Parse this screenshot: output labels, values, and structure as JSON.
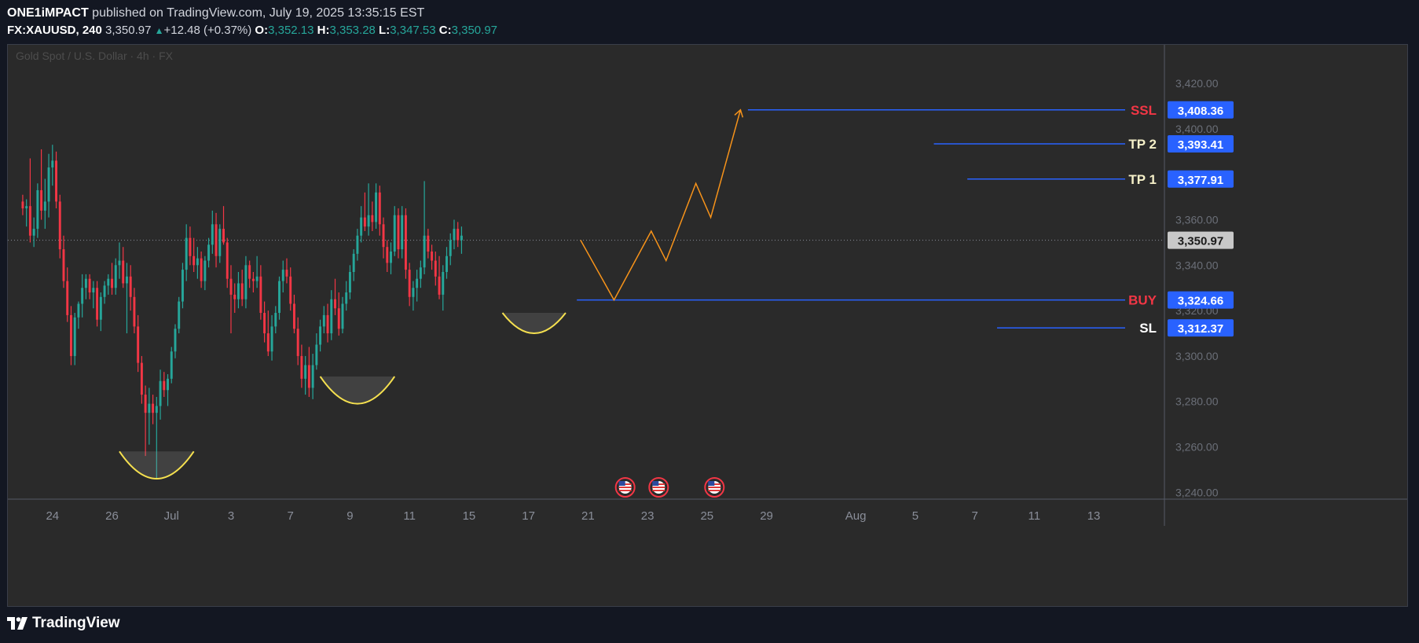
{
  "header": {
    "author": "ONE1iMPACT",
    "published_text": "published on TradingView.com, July 19, 2025 13:35:15 EST",
    "symbol": "FX:XAUUSD, 240",
    "last": "3,350.97",
    "change": "+12.48 (+0.37%)",
    "open_label": "O:",
    "open": "3,352.13",
    "high_label": "H:",
    "high": "3,353.28",
    "low_label": "L:",
    "low": "3,347.53",
    "close_label": "C:",
    "close": "3,350.97"
  },
  "footer": {
    "brand": "TradingView"
  },
  "colors": {
    "background": "#2a2a2a",
    "up": "#26a69a",
    "down": "#f23645",
    "level_line": "#2962ff",
    "price_badge": "#2962ff",
    "current_badge": "#c8c8c8",
    "projection": "#f7931a",
    "pattern": "#f5e04f",
    "buy_label": "#f23645",
    "ssl_label": "#f23645",
    "tp_label": "#f5f0c8",
    "sl_label": "#ffffff"
  },
  "chart_data": {
    "type": "candlestick",
    "title": "Gold Spot / U.S. Dollar · 4h · FX",
    "y_ticks": [
      "3,420.00",
      "3,400.00",
      "3,380.00",
      "3,360.00",
      "3,340.00",
      "3,320.00",
      "3,300.00",
      "3,280.00",
      "3,260.00",
      "3,240.00"
    ],
    "y_tick_values": [
      3420,
      3400,
      3380,
      3360,
      3340,
      3320,
      3300,
      3280,
      3260,
      3240
    ],
    "ylim": [
      3237,
      3437
    ],
    "x_ticks": [
      "24",
      "26",
      "Jul",
      "3",
      "7",
      "9",
      "11",
      "15",
      "17",
      "21",
      "23",
      "25",
      "29",
      "Aug",
      "5",
      "7",
      "11",
      "13"
    ],
    "x_tick_index": [
      8,
      24,
      40,
      56,
      72,
      88,
      104,
      120,
      136,
      152,
      168,
      184,
      200,
      224,
      240,
      256,
      272,
      288
    ],
    "xlim": [
      -4,
      307
    ],
    "current_price": {
      "label": "3,350.97",
      "value": 3350.97
    },
    "levels": [
      {
        "name": "SSL",
        "value": 3408.36,
        "badge": "3,408.36",
        "start_index": 195
      },
      {
        "name": "TP 2",
        "value": 3393.41,
        "badge": "3,393.41",
        "start_index": 245
      },
      {
        "name": "TP 1",
        "value": 3377.91,
        "badge": "3,377.91",
        "start_index": 254
      },
      {
        "name": "BUY",
        "value": 3324.66,
        "badge": "3,324.66",
        "start_index": 149
      },
      {
        "name": "SL",
        "value": 3312.37,
        "badge": "3,312.37",
        "start_index": 262
      }
    ],
    "projection_path": [
      {
        "index": 150,
        "value": 3351
      },
      {
        "index": 159,
        "value": 3324.66
      },
      {
        "index": 169,
        "value": 3355
      },
      {
        "index": 173,
        "value": 3342
      },
      {
        "index": 181,
        "value": 3376
      },
      {
        "index": 185,
        "value": 3361
      },
      {
        "index": 193,
        "value": 3408.36
      }
    ],
    "events": [
      {
        "index": 162,
        "icon": "us-flag-icon"
      },
      {
        "index": 171,
        "icon": "us-flag-icon"
      },
      {
        "index": 186,
        "icon": "us-flag-icon"
      }
    ],
    "patterns": [
      {
        "start": 26,
        "end": 46,
        "bottom": 3246,
        "rim": 3258
      },
      {
        "start": 80,
        "end": 100,
        "bottom": 3279,
        "rim": 3291
      },
      {
        "start": 129,
        "end": 146,
        "bottom": 3310,
        "rim": 3319
      }
    ],
    "candles": [
      {
        "o": 3368,
        "h": 3371,
        "l": 3362,
        "c": 3365
      },
      {
        "o": 3365,
        "h": 3369,
        "l": 3357,
        "c": 3366
      },
      {
        "o": 3366,
        "h": 3387,
        "l": 3350,
        "c": 3353
      },
      {
        "o": 3353,
        "h": 3361,
        "l": 3348,
        "c": 3356
      },
      {
        "o": 3356,
        "h": 3376,
        "l": 3352,
        "c": 3373
      },
      {
        "o": 3373,
        "h": 3391,
        "l": 3360,
        "c": 3364
      },
      {
        "o": 3364,
        "h": 3378,
        "l": 3356,
        "c": 3368
      },
      {
        "o": 3368,
        "h": 3389,
        "l": 3361,
        "c": 3383
      },
      {
        "o": 3383,
        "h": 3393,
        "l": 3375,
        "c": 3386
      },
      {
        "o": 3386,
        "h": 3390,
        "l": 3365,
        "c": 3368
      },
      {
        "o": 3368,
        "h": 3371,
        "l": 3343,
        "c": 3347
      },
      {
        "o": 3347,
        "h": 3353,
        "l": 3330,
        "c": 3333
      },
      {
        "o": 3333,
        "h": 3339,
        "l": 3315,
        "c": 3318
      },
      {
        "o": 3318,
        "h": 3322,
        "l": 3296,
        "c": 3300
      },
      {
        "o": 3300,
        "h": 3319,
        "l": 3296,
        "c": 3317
      },
      {
        "o": 3317,
        "h": 3324,
        "l": 3312,
        "c": 3323
      },
      {
        "o": 3323,
        "h": 3336,
        "l": 3317,
        "c": 3330
      },
      {
        "o": 3330,
        "h": 3336,
        "l": 3325,
        "c": 3334
      },
      {
        "o": 3334,
        "h": 3336,
        "l": 3325,
        "c": 3328
      },
      {
        "o": 3328,
        "h": 3333,
        "l": 3321,
        "c": 3330
      },
      {
        "o": 3330,
        "h": 3333,
        "l": 3313,
        "c": 3316
      },
      {
        "o": 3316,
        "h": 3328,
        "l": 3311,
        "c": 3326
      },
      {
        "o": 3326,
        "h": 3333,
        "l": 3323,
        "c": 3331
      },
      {
        "o": 3331,
        "h": 3336,
        "l": 3327,
        "c": 3334
      },
      {
        "o": 3334,
        "h": 3341,
        "l": 3327,
        "c": 3330
      },
      {
        "o": 3330,
        "h": 3343,
        "l": 3327,
        "c": 3340
      },
      {
        "o": 3340,
        "h": 3350,
        "l": 3334,
        "c": 3342
      },
      {
        "o": 3342,
        "h": 3348,
        "l": 3330,
        "c": 3332
      },
      {
        "o": 3332,
        "h": 3341,
        "l": 3310,
        "c": 3335
      },
      {
        "o": 3335,
        "h": 3340,
        "l": 3320,
        "c": 3326
      },
      {
        "o": 3326,
        "h": 3330,
        "l": 3310,
        "c": 3313
      },
      {
        "o": 3313,
        "h": 3318,
        "l": 3293,
        "c": 3297
      },
      {
        "o": 3297,
        "h": 3300,
        "l": 3279,
        "c": 3283
      },
      {
        "o": 3283,
        "h": 3287,
        "l": 3256,
        "c": 3275
      },
      {
        "o": 3275,
        "h": 3286,
        "l": 3261,
        "c": 3279
      },
      {
        "o": 3279,
        "h": 3283,
        "l": 3270,
        "c": 3275
      },
      {
        "o": 3275,
        "h": 3282,
        "l": 3246,
        "c": 3278
      },
      {
        "o": 3278,
        "h": 3294,
        "l": 3272,
        "c": 3289
      },
      {
        "o": 3289,
        "h": 3293,
        "l": 3282,
        "c": 3285
      },
      {
        "o": 3285,
        "h": 3292,
        "l": 3278,
        "c": 3290
      },
      {
        "o": 3290,
        "h": 3304,
        "l": 3288,
        "c": 3302
      },
      {
        "o": 3302,
        "h": 3314,
        "l": 3299,
        "c": 3312
      },
      {
        "o": 3312,
        "h": 3326,
        "l": 3310,
        "c": 3324
      },
      {
        "o": 3324,
        "h": 3341,
        "l": 3321,
        "c": 3338
      },
      {
        "o": 3338,
        "h": 3358,
        "l": 3333,
        "c": 3352
      },
      {
        "o": 3352,
        "h": 3357,
        "l": 3340,
        "c": 3344
      },
      {
        "o": 3344,
        "h": 3352,
        "l": 3337,
        "c": 3340
      },
      {
        "o": 3340,
        "h": 3348,
        "l": 3334,
        "c": 3343
      },
      {
        "o": 3343,
        "h": 3346,
        "l": 3330,
        "c": 3333
      },
      {
        "o": 3333,
        "h": 3344,
        "l": 3329,
        "c": 3342
      },
      {
        "o": 3342,
        "h": 3352,
        "l": 3339,
        "c": 3349
      },
      {
        "o": 3349,
        "h": 3364,
        "l": 3345,
        "c": 3358
      },
      {
        "o": 3358,
        "h": 3363,
        "l": 3339,
        "c": 3344
      },
      {
        "o": 3344,
        "h": 3358,
        "l": 3341,
        "c": 3356
      },
      {
        "o": 3356,
        "h": 3366,
        "l": 3349,
        "c": 3350
      },
      {
        "o": 3350,
        "h": 3352,
        "l": 3330,
        "c": 3334
      },
      {
        "o": 3334,
        "h": 3340,
        "l": 3310,
        "c": 3327
      },
      {
        "o": 3327,
        "h": 3332,
        "l": 3319,
        "c": 3325
      },
      {
        "o": 3325,
        "h": 3337,
        "l": 3321,
        "c": 3332
      },
      {
        "o": 3332,
        "h": 3338,
        "l": 3322,
        "c": 3325
      },
      {
        "o": 3325,
        "h": 3344,
        "l": 3321,
        "c": 3340
      },
      {
        "o": 3340,
        "h": 3342,
        "l": 3330,
        "c": 3334
      },
      {
        "o": 3334,
        "h": 3337,
        "l": 3328,
        "c": 3333
      },
      {
        "o": 3333,
        "h": 3344,
        "l": 3330,
        "c": 3335
      },
      {
        "o": 3335,
        "h": 3340,
        "l": 3316,
        "c": 3319
      },
      {
        "o": 3319,
        "h": 3324,
        "l": 3306,
        "c": 3310
      },
      {
        "o": 3310,
        "h": 3320,
        "l": 3300,
        "c": 3302
      },
      {
        "o": 3302,
        "h": 3318,
        "l": 3298,
        "c": 3313
      },
      {
        "o": 3313,
        "h": 3322,
        "l": 3310,
        "c": 3319
      },
      {
        "o": 3319,
        "h": 3335,
        "l": 3316,
        "c": 3333
      },
      {
        "o": 3333,
        "h": 3342,
        "l": 3328,
        "c": 3338
      },
      {
        "o": 3338,
        "h": 3343,
        "l": 3332,
        "c": 3335
      },
      {
        "o": 3335,
        "h": 3339,
        "l": 3320,
        "c": 3323
      },
      {
        "o": 3323,
        "h": 3327,
        "l": 3310,
        "c": 3312
      },
      {
        "o": 3312,
        "h": 3317,
        "l": 3296,
        "c": 3300
      },
      {
        "o": 3300,
        "h": 3305,
        "l": 3286,
        "c": 3290
      },
      {
        "o": 3290,
        "h": 3300,
        "l": 3283,
        "c": 3296
      },
      {
        "o": 3296,
        "h": 3304,
        "l": 3282,
        "c": 3286
      },
      {
        "o": 3286,
        "h": 3301,
        "l": 3281,
        "c": 3296
      },
      {
        "o": 3296,
        "h": 3310,
        "l": 3294,
        "c": 3305
      },
      {
        "o": 3305,
        "h": 3316,
        "l": 3302,
        "c": 3313
      },
      {
        "o": 3313,
        "h": 3322,
        "l": 3310,
        "c": 3318
      },
      {
        "o": 3318,
        "h": 3323,
        "l": 3306,
        "c": 3310
      },
      {
        "o": 3310,
        "h": 3329,
        "l": 3307,
        "c": 3325
      },
      {
        "o": 3325,
        "h": 3334,
        "l": 3318,
        "c": 3321
      },
      {
        "o": 3321,
        "h": 3328,
        "l": 3309,
        "c": 3312
      },
      {
        "o": 3312,
        "h": 3326,
        "l": 3310,
        "c": 3323
      },
      {
        "o": 3323,
        "h": 3333,
        "l": 3320,
        "c": 3328
      },
      {
        "o": 3328,
        "h": 3340,
        "l": 3325,
        "c": 3337
      },
      {
        "o": 3337,
        "h": 3347,
        "l": 3333,
        "c": 3345
      },
      {
        "o": 3345,
        "h": 3356,
        "l": 3342,
        "c": 3353
      },
      {
        "o": 3353,
        "h": 3366,
        "l": 3350,
        "c": 3361
      },
      {
        "o": 3361,
        "h": 3372,
        "l": 3355,
        "c": 3357
      },
      {
        "o": 3357,
        "h": 3376,
        "l": 3353,
        "c": 3362
      },
      {
        "o": 3362,
        "h": 3368,
        "l": 3355,
        "c": 3359
      },
      {
        "o": 3359,
        "h": 3376,
        "l": 3356,
        "c": 3372
      },
      {
        "o": 3372,
        "h": 3375,
        "l": 3353,
        "c": 3358
      },
      {
        "o": 3358,
        "h": 3361,
        "l": 3343,
        "c": 3348
      },
      {
        "o": 3348,
        "h": 3351,
        "l": 3337,
        "c": 3341
      },
      {
        "o": 3341,
        "h": 3350,
        "l": 3336,
        "c": 3346
      },
      {
        "o": 3346,
        "h": 3366,
        "l": 3344,
        "c": 3362
      },
      {
        "o": 3362,
        "h": 3365,
        "l": 3343,
        "c": 3347
      },
      {
        "o": 3347,
        "h": 3366,
        "l": 3343,
        "c": 3362
      },
      {
        "o": 3362,
        "h": 3365,
        "l": 3334,
        "c": 3338
      },
      {
        "o": 3338,
        "h": 3341,
        "l": 3322,
        "c": 3326
      },
      {
        "o": 3326,
        "h": 3333,
        "l": 3320,
        "c": 3330
      },
      {
        "o": 3330,
        "h": 3338,
        "l": 3324,
        "c": 3334
      },
      {
        "o": 3334,
        "h": 3342,
        "l": 3330,
        "c": 3339
      },
      {
        "o": 3339,
        "h": 3377,
        "l": 3336,
        "c": 3353
      },
      {
        "o": 3353,
        "h": 3356,
        "l": 3343,
        "c": 3346
      },
      {
        "o": 3346,
        "h": 3349,
        "l": 3338,
        "c": 3342
      },
      {
        "o": 3342,
        "h": 3346,
        "l": 3331,
        "c": 3335
      },
      {
        "o": 3335,
        "h": 3344,
        "l": 3325,
        "c": 3327
      },
      {
        "o": 3327,
        "h": 3340,
        "l": 3320,
        "c": 3337
      },
      {
        "o": 3337,
        "h": 3348,
        "l": 3334,
        "c": 3344
      },
      {
        "o": 3344,
        "h": 3354,
        "l": 3340,
        "c": 3351
      },
      {
        "o": 3351,
        "h": 3360,
        "l": 3347,
        "c": 3356
      },
      {
        "o": 3356,
        "h": 3359,
        "l": 3348,
        "c": 3351
      },
      {
        "o": 3351,
        "h": 3357,
        "l": 3345,
        "c": 3353
      }
    ]
  }
}
